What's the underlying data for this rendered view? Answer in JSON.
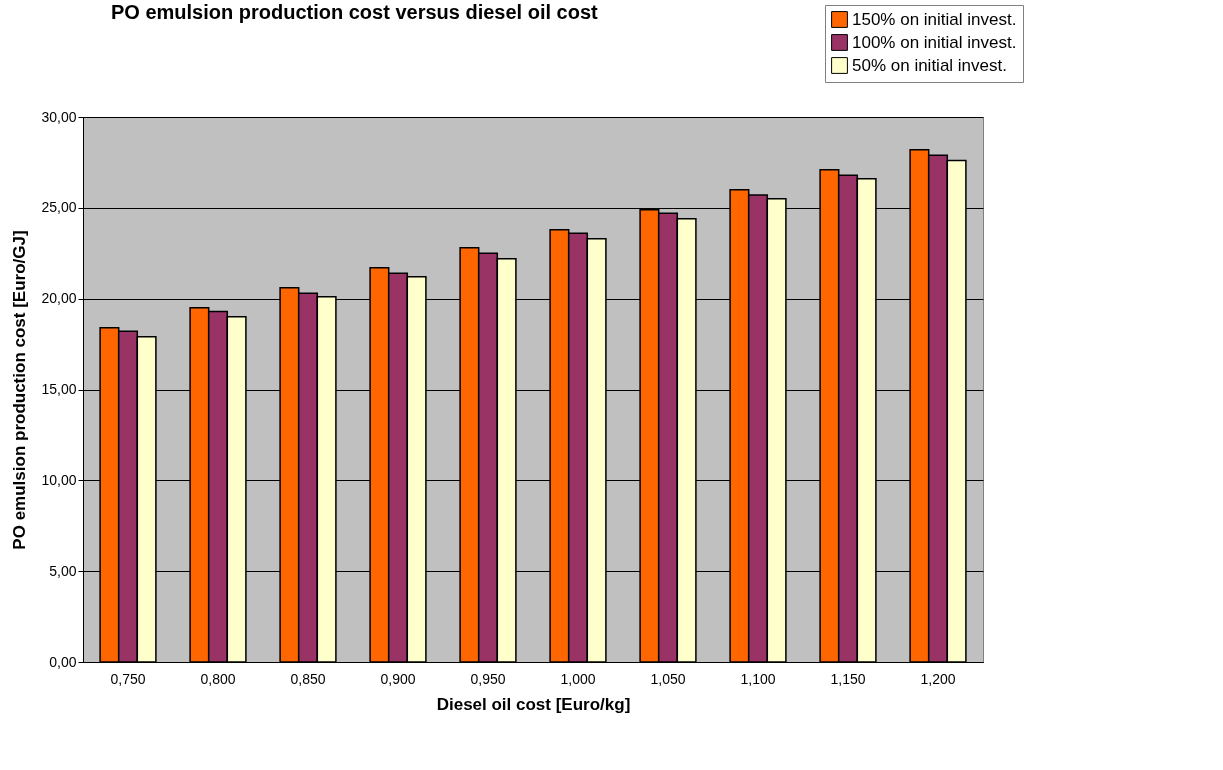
{
  "chart_data": {
    "type": "bar",
    "title": "PO emulsion production cost versus diesel oil cost",
    "xlabel": "Diesel oil cost [Euro/kg]",
    "ylabel": "PO emulsion production cost [Euro/GJ]",
    "categories": [
      "0,750",
      "0,800",
      "0,850",
      "0,900",
      "0,950",
      "1,000",
      "1,050",
      "1,100",
      "1,150",
      "1,200"
    ],
    "series": [
      {
        "name": "150% on initial invest.",
        "color": "#ff6600",
        "values": [
          18.4,
          19.5,
          20.6,
          21.7,
          22.8,
          23.8,
          24.9,
          26.0,
          27.1,
          28.2
        ]
      },
      {
        "name": "100% on initial invest.",
        "color": "#993366",
        "values": [
          18.2,
          19.3,
          20.3,
          21.4,
          22.5,
          23.6,
          24.7,
          25.7,
          26.8,
          27.9
        ]
      },
      {
        "name": "50% on initial invest.",
        "color": "#ffffcc",
        "values": [
          17.9,
          19.0,
          20.1,
          21.2,
          22.2,
          23.3,
          24.4,
          25.5,
          26.6,
          27.6
        ]
      }
    ],
    "ylim": [
      0,
      30
    ],
    "yticks": [
      {
        "value": 0,
        "label": "0,00"
      },
      {
        "value": 5,
        "label": "5,00"
      },
      {
        "value": 10,
        "label": "10,00"
      },
      {
        "value": 15,
        "label": "15,00"
      },
      {
        "value": 20,
        "label": "20,00"
      },
      {
        "value": 25,
        "label": "25,00"
      },
      {
        "value": 30,
        "label": "30,00"
      }
    ],
    "grid": "y",
    "legend": "top right"
  }
}
